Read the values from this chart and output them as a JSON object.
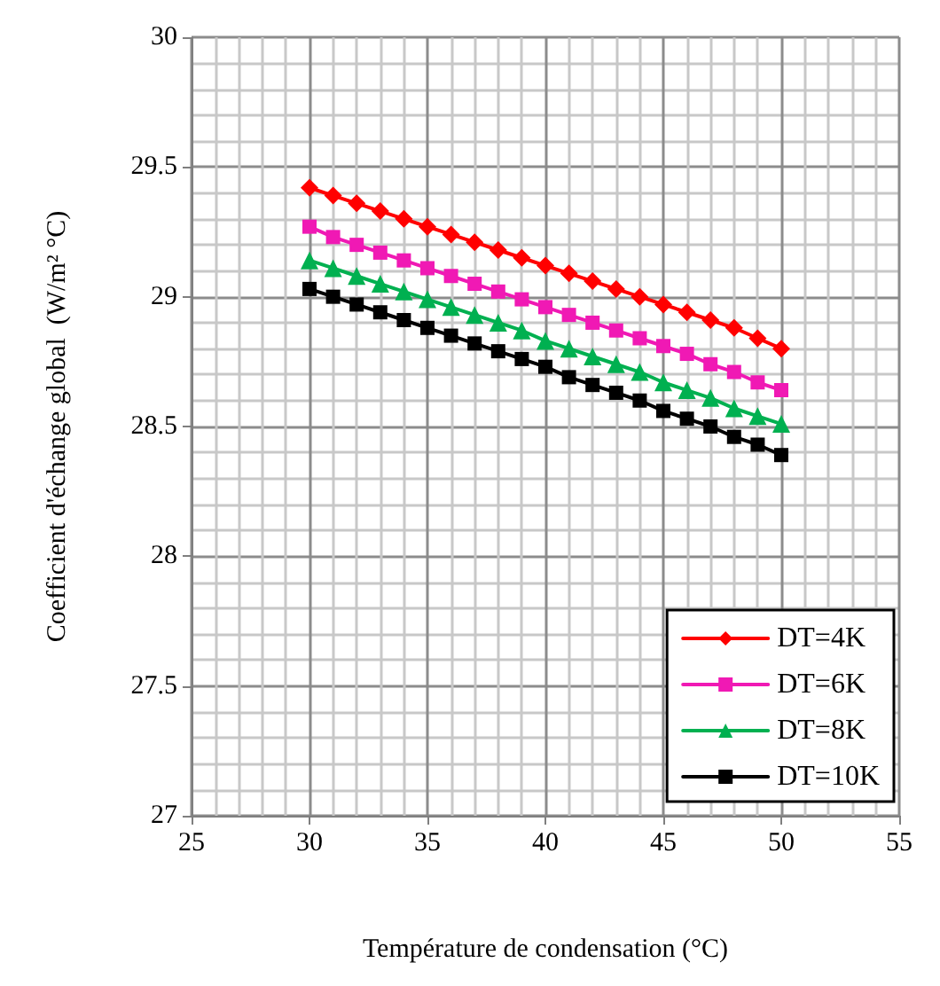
{
  "chart_data": {
    "type": "line",
    "xlabel": "Température de condensation (°C)",
    "ylabel": "Coefficient d'échange global  (W/m² °C)",
    "x": [
      30,
      31,
      32,
      33,
      34,
      35,
      36,
      37,
      38,
      39,
      40,
      41,
      42,
      43,
      44,
      45,
      46,
      47,
      48,
      49,
      50
    ],
    "series": [
      {
        "name": "DT=4K",
        "color": "#ff0000",
        "marker": "diamond",
        "values": [
          29.42,
          29.39,
          29.36,
          29.33,
          29.3,
          29.27,
          29.24,
          29.21,
          29.18,
          29.15,
          29.12,
          29.09,
          29.06,
          29.03,
          29.0,
          28.97,
          28.94,
          28.91,
          28.88,
          28.84,
          28.8
        ]
      },
      {
        "name": "DT=6K",
        "color": "#f019b4",
        "marker": "square",
        "values": [
          29.27,
          29.23,
          29.2,
          29.17,
          29.14,
          29.11,
          29.08,
          29.05,
          29.02,
          28.99,
          28.96,
          28.93,
          28.9,
          28.87,
          28.84,
          28.81,
          28.78,
          28.74,
          28.71,
          28.67,
          28.64
        ]
      },
      {
        "name": "DT=8K",
        "color": "#00b050",
        "marker": "triangle",
        "values": [
          29.14,
          29.11,
          29.08,
          29.05,
          29.02,
          28.99,
          28.96,
          28.93,
          28.9,
          28.87,
          28.83,
          28.8,
          28.77,
          28.74,
          28.71,
          28.67,
          28.64,
          28.61,
          28.57,
          28.54,
          28.51
        ]
      },
      {
        "name": "DT=10K",
        "color": "#000000",
        "marker": "square",
        "values": [
          29.03,
          29.0,
          28.97,
          28.94,
          28.91,
          28.88,
          28.85,
          28.82,
          28.79,
          28.76,
          28.73,
          28.69,
          28.66,
          28.63,
          28.6,
          28.56,
          28.53,
          28.5,
          28.46,
          28.43,
          28.39
        ]
      }
    ],
    "xlim": [
      25,
      55
    ],
    "xticks": [
      25,
      30,
      35,
      40,
      45,
      50,
      55
    ],
    "ylim": [
      27,
      30
    ],
    "yticks": [
      27,
      27.5,
      28,
      28.5,
      29,
      29.5,
      30
    ],
    "grid": true,
    "legend": "bottom right",
    "line_style": "solid"
  }
}
